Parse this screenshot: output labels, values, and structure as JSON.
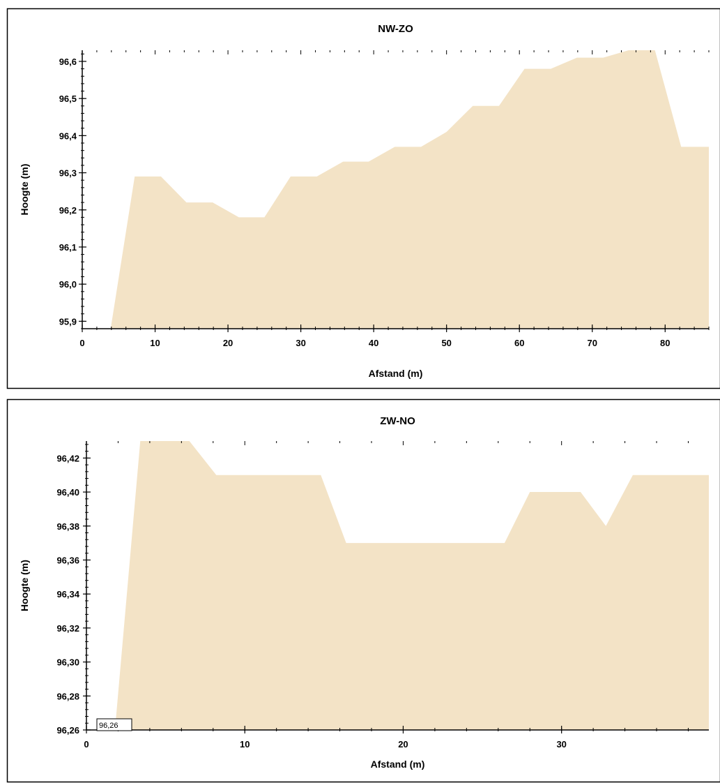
{
  "chart_data": [
    {
      "type": "area",
      "title": "NW-ZO",
      "xlabel": "Afstand (m)",
      "ylabel": "Hoogte (m)",
      "xlim": [
        0,
        86
      ],
      "ylim": [
        95.88,
        96.63
      ],
      "xticks": [
        0,
        10,
        20,
        30,
        40,
        50,
        60,
        70,
        80
      ],
      "xtick_labels": [
        "0",
        "10",
        "20",
        "30",
        "40",
        "50",
        "60",
        "70",
        "80"
      ],
      "yticks": [
        95.9,
        96.0,
        96.1,
        96.2,
        96.3,
        96.4,
        96.5,
        96.6
      ],
      "ytick_labels": [
        "95,9",
        "96,0",
        "96,1",
        "96,2",
        "96,3",
        "96,4",
        "96,5",
        "96,6"
      ],
      "fill_color": "#f3e3c6",
      "grid": false,
      "series": [
        {
          "x": [
            3.9,
            7.2,
            10.8,
            14.3,
            17.9,
            21.5,
            25.0,
            28.6,
            32.2,
            35.8,
            39.3,
            42.9,
            46.5,
            50.0,
            53.6,
            57.2,
            60.7,
            64.3,
            67.9,
            71.5,
            75.0,
            78.6,
            82.2,
            86.0
          ],
          "y": [
            95.88,
            96.29,
            96.29,
            96.22,
            96.22,
            96.18,
            96.18,
            96.29,
            96.29,
            96.33,
            96.33,
            96.37,
            96.37,
            96.41,
            96.48,
            96.48,
            96.58,
            96.58,
            96.61,
            96.61,
            96.63,
            96.63,
            96.37,
            96.37
          ]
        }
      ]
    },
    {
      "type": "area",
      "title": "ZW-NO",
      "xlabel": "Afstand (m)",
      "ylabel": "Hoogte (m)",
      "xlim": [
        0,
        39.3
      ],
      "ylim": [
        96.26,
        96.43
      ],
      "xticks": [
        0,
        10,
        20,
        30
      ],
      "xtick_labels": [
        "0",
        "10",
        "20",
        "30"
      ],
      "yticks": [
        96.26,
        96.28,
        96.3,
        96.32,
        96.34,
        96.36,
        96.38,
        96.4,
        96.42
      ],
      "ytick_labels": [
        "96,26",
        "96,28",
        "96,30",
        "96,32",
        "96,34",
        "96,36",
        "96,38",
        "96,40",
        "96,42"
      ],
      "fill_color": "#f3e3c6",
      "grid": false,
      "marker_label": "96,26",
      "series": [
        {
          "x": [
            1.8,
            3.4,
            6.5,
            8.2,
            14.8,
            16.4,
            26.4,
            28.0,
            31.2,
            32.8,
            34.5,
            39.3
          ],
          "y": [
            96.26,
            96.43,
            96.43,
            96.41,
            96.41,
            96.37,
            96.37,
            96.4,
            96.4,
            96.38,
            96.41,
            96.41
          ]
        }
      ]
    }
  ]
}
